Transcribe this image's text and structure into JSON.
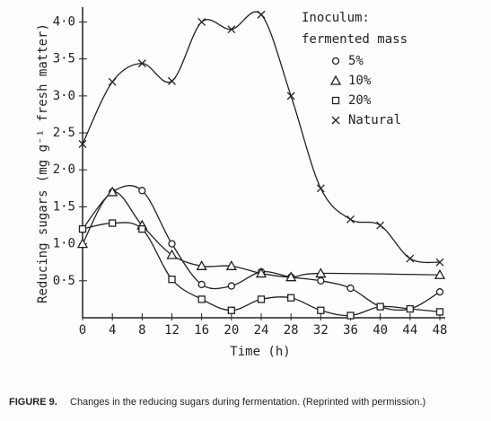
{
  "chart_data": {
    "type": "line",
    "xlabel": "Time (h)",
    "ylabel": "Reducing sugars (mg g⁻¹ fresh matter)",
    "legend_title": [
      "Inoculum:",
      "fermented mass"
    ],
    "caption_label": "FIGURE 9.",
    "caption": "Changes in the reducing sugars during fermentation. (Reprinted with permission.)",
    "xlim": [
      0,
      48
    ],
    "xticks": [
      0,
      4,
      8,
      12,
      16,
      20,
      24,
      28,
      32,
      36,
      40,
      44,
      48
    ],
    "ylim": [
      0,
      4.2
    ],
    "yticks": [
      {
        "value": 0.5,
        "label": "0·5"
      },
      {
        "value": 1,
        "label": "1·0"
      },
      {
        "value": 1.5,
        "label": "1·5"
      },
      {
        "value": 2,
        "label": "2·0"
      },
      {
        "value": 2.5,
        "label": "2·5"
      },
      {
        "value": 3,
        "label": "3·0"
      },
      {
        "value": 3.5,
        "label": "3·5"
      },
      {
        "value": 4,
        "label": "4·0"
      }
    ],
    "series": [
      {
        "name": "5%",
        "marker": "circle",
        "color": "#222",
        "x": [
          0,
          4,
          8,
          12,
          16,
          20,
          24,
          28,
          32,
          36,
          40,
          44,
          48
        ],
        "values": [
          1.2,
          1.7,
          1.72,
          1.0,
          0.45,
          0.43,
          0.62,
          0.55,
          0.5,
          0.4,
          0.15,
          0.12,
          0.35
        ]
      },
      {
        "name": "10%",
        "marker": "triangle",
        "color": "#222",
        "x": [
          0,
          4,
          8,
          12,
          16,
          20,
          24,
          28,
          32,
          48
        ],
        "values": [
          1.0,
          1.7,
          1.25,
          0.85,
          0.7,
          0.7,
          0.6,
          0.55,
          0.6,
          0.58
        ]
      },
      {
        "name": "20%",
        "marker": "square",
        "color": "#222",
        "x": [
          0,
          4,
          8,
          12,
          16,
          20,
          24,
          28,
          32,
          36,
          40,
          44,
          48
        ],
        "values": [
          1.2,
          1.28,
          1.2,
          0.52,
          0.25,
          0.1,
          0.25,
          0.27,
          0.1,
          0.03,
          0.15,
          0.12,
          0.08
        ]
      },
      {
        "name": "Natural",
        "marker": "x",
        "color": "#222",
        "x": [
          0,
          4,
          8,
          12,
          16,
          20,
          24,
          28,
          32,
          36,
          40,
          44,
          48
        ],
        "values": [
          2.35,
          3.19,
          3.44,
          3.2,
          4.0,
          3.9,
          4.1,
          3.0,
          1.75,
          1.33,
          1.25,
          0.8,
          0.75
        ]
      }
    ]
  }
}
